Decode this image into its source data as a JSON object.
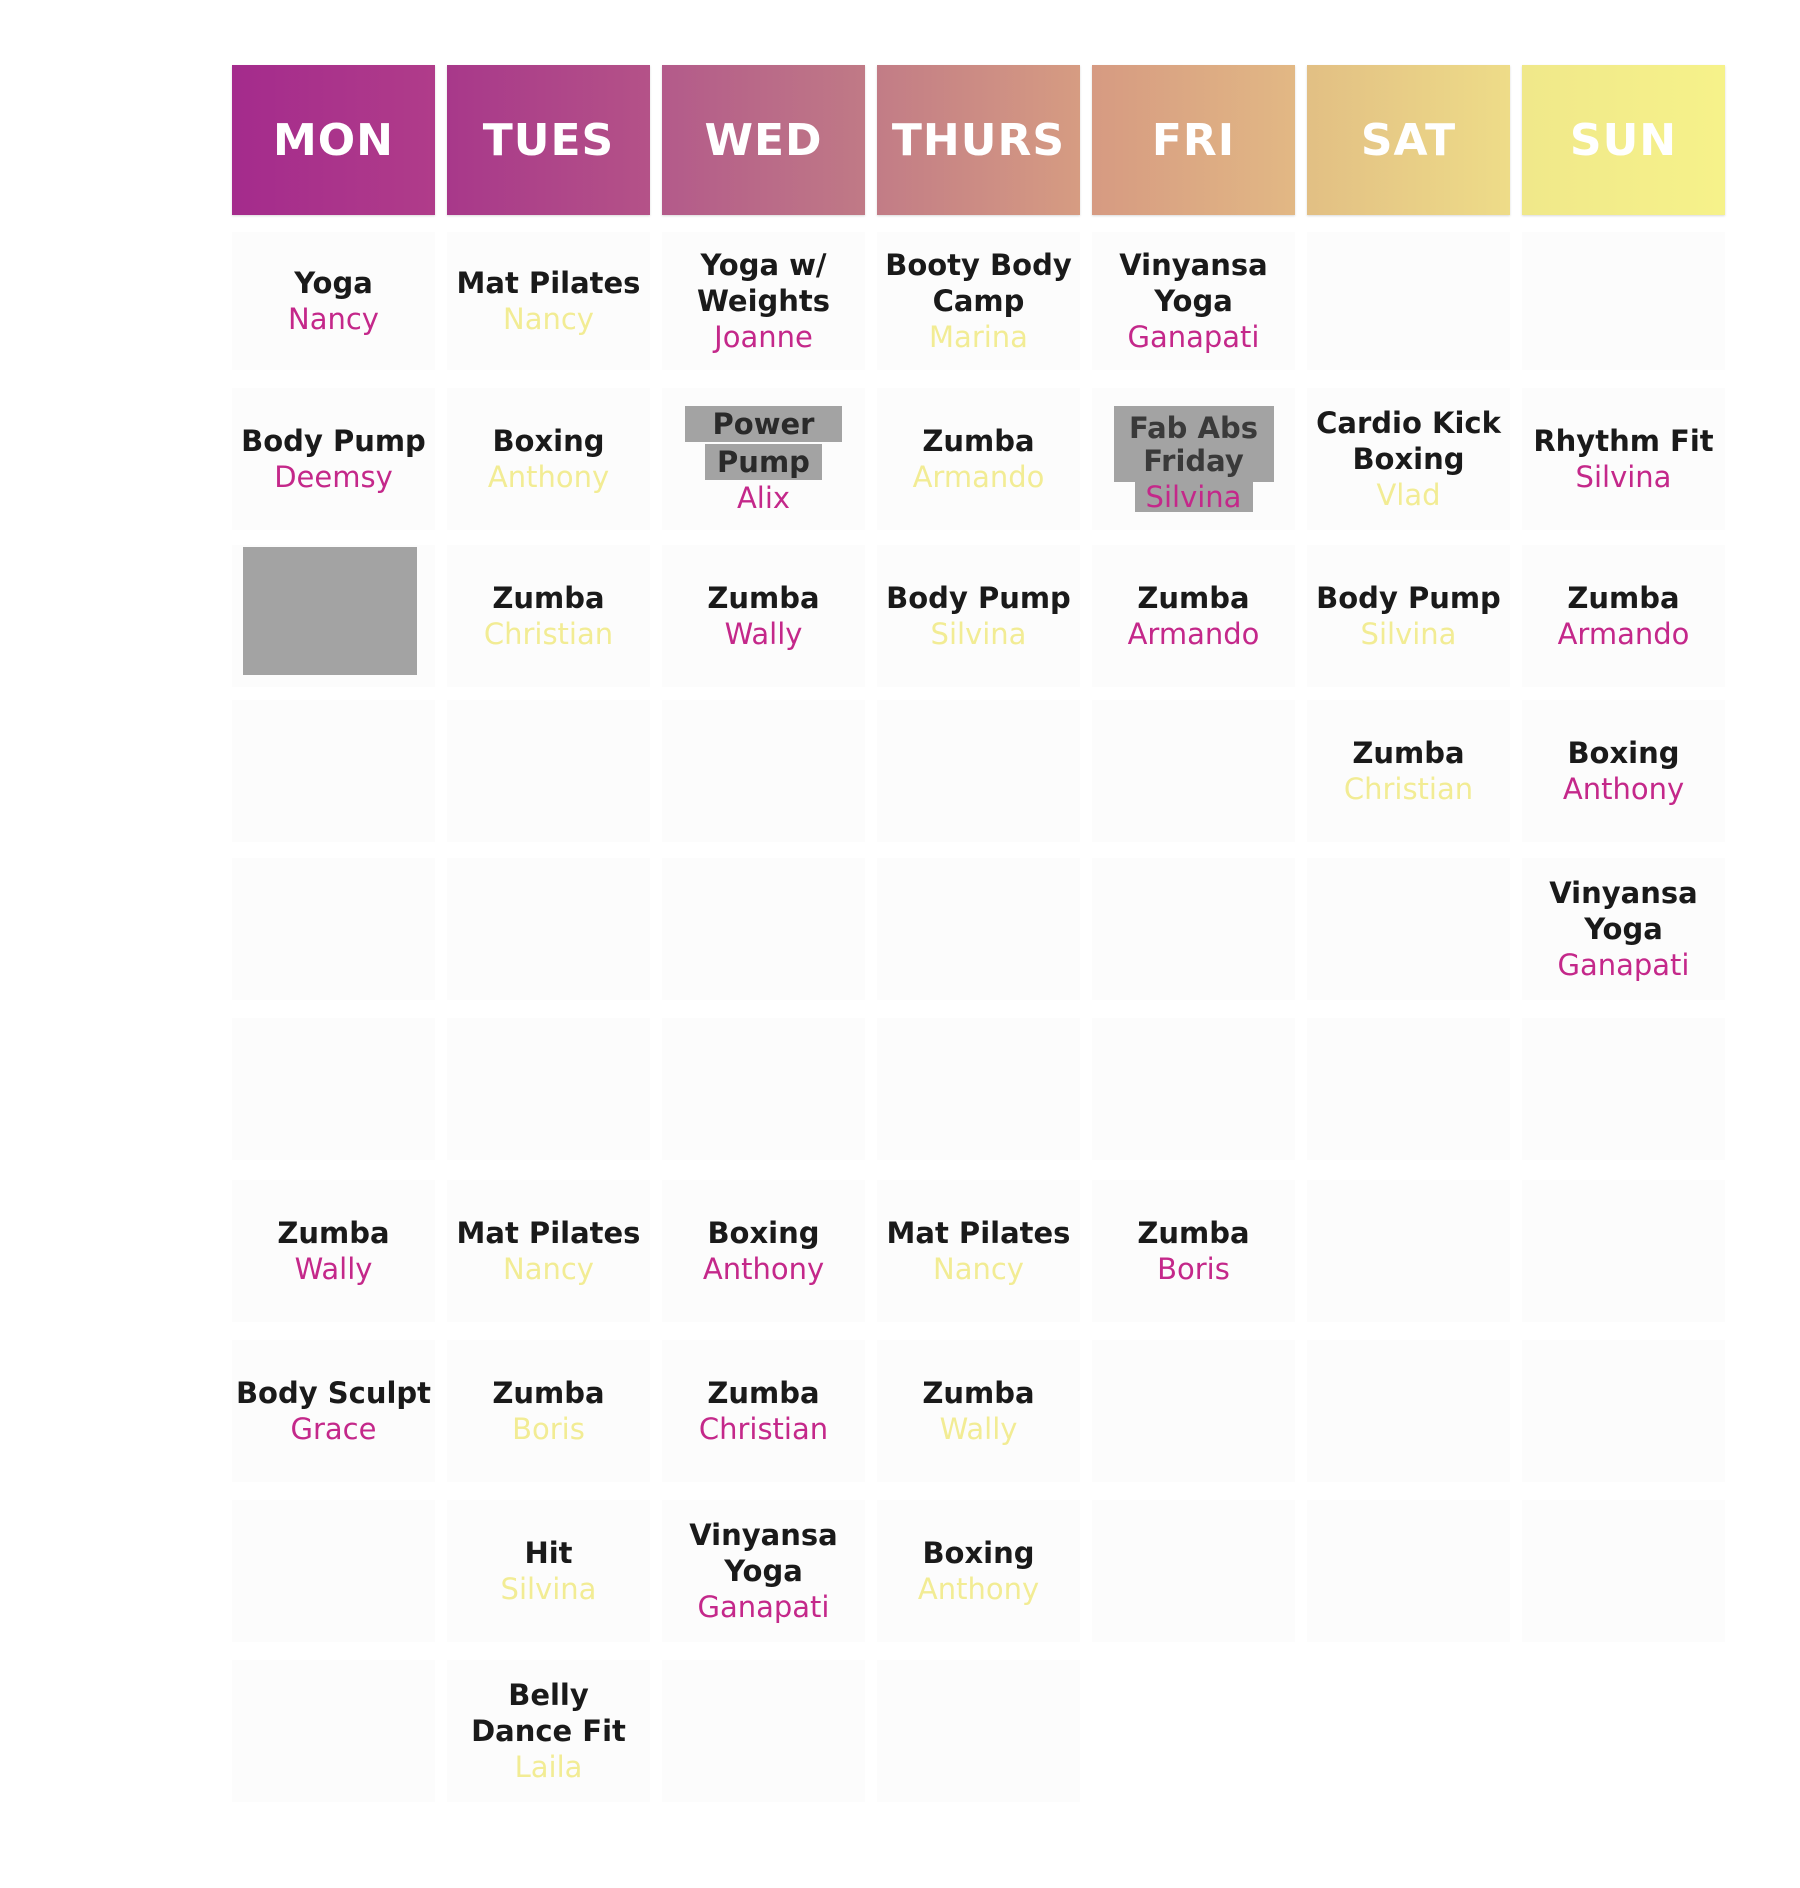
{
  "colors": {
    "pink_instructor": "#c4288a",
    "yellow_instructor": "#f2ec94",
    "highlight": "#a3a3a3"
  },
  "days": [
    {
      "label": "MON"
    },
    {
      "label": "TUES"
    },
    {
      "label": "WED"
    },
    {
      "label": "THURS"
    },
    {
      "label": "FRI"
    },
    {
      "label": "SAT"
    },
    {
      "label": "SUN"
    }
  ],
  "schedule": {
    "mon": {
      "r1": {
        "class": "Yoga",
        "instructor": "Nancy"
      },
      "r2": {
        "class": "Body Pump",
        "instructor": "Deemsy"
      },
      "r7": {
        "class": "Zumba",
        "instructor": "Wally"
      },
      "r8": {
        "class": "Body Sculpt",
        "instructor": "Grace"
      }
    },
    "tues": {
      "r1": {
        "class": "Mat Pilates",
        "instructor": "Nancy"
      },
      "r2": {
        "class": "Boxing",
        "instructor": "Anthony"
      },
      "r3": {
        "class": "Zumba",
        "instructor": "Christian"
      },
      "r7": {
        "class": "Mat Pilates",
        "instructor": "Nancy"
      },
      "r8": {
        "class": "Zumba",
        "instructor": "Boris"
      },
      "r9": {
        "class": "Hit",
        "instructor": "Silvina"
      },
      "r10": {
        "class_line1": "Belly",
        "class_line2": "Dance Fit",
        "instructor": "Laila"
      }
    },
    "wed": {
      "r1": {
        "class_line1": "Yoga w/",
        "class_line2": "Weights",
        "instructor": "Joanne"
      },
      "r2": {
        "class_line1": "Power",
        "class_line2": "Pump",
        "instructor": "Alix"
      },
      "r3": {
        "class": "Zumba",
        "instructor": "Wally"
      },
      "r7": {
        "class": "Boxing",
        "instructor": "Anthony"
      },
      "r8": {
        "class": "Zumba",
        "instructor": "Christian"
      },
      "r9": {
        "class_line1": "Vinyansa",
        "class_line2": "Yoga",
        "instructor": "Ganapati"
      }
    },
    "thurs": {
      "r1": {
        "class_line1": "Booty Body",
        "class_line2": "Camp",
        "instructor": "Marina"
      },
      "r2": {
        "class": "Zumba",
        "instructor": "Armando"
      },
      "r3": {
        "class": "Body Pump",
        "instructor": "Silvina"
      },
      "r7": {
        "class": "Mat Pilates",
        "instructor": "Nancy"
      },
      "r8": {
        "class": "Zumba",
        "instructor": "Wally"
      },
      "r9": {
        "class": "Boxing",
        "instructor": "Anthony"
      }
    },
    "fri": {
      "r1": {
        "class_line1": "Vinyansa",
        "class_line2": "Yoga",
        "instructor": "Ganapati"
      },
      "r2": {
        "class_line1": "Fab Abs",
        "class_line2": "Friday",
        "instructor": "Silvina"
      },
      "r3": {
        "class": "Zumba",
        "instructor": "Armando"
      },
      "r7": {
        "class": "Zumba",
        "instructor": "Boris"
      }
    },
    "sat": {
      "r2": {
        "class_line1": "Cardio Kick",
        "class_line2": "Boxing",
        "instructor": "Vlad"
      },
      "r3": {
        "class": "Body Pump",
        "instructor": "Silvina"
      },
      "r4": {
        "class": "Zumba",
        "instructor": "Christian"
      }
    },
    "sun": {
      "r2": {
        "class": "Rhythm Fit",
        "instructor": "Silvina"
      },
      "r3": {
        "class": "Zumba",
        "instructor": "Armando"
      },
      "r4": {
        "class": "Boxing",
        "instructor": "Anthony"
      },
      "r5": {
        "class_line1": "Vinyansa",
        "class_line2": "Yoga",
        "instructor": "Ganapati"
      }
    }
  }
}
